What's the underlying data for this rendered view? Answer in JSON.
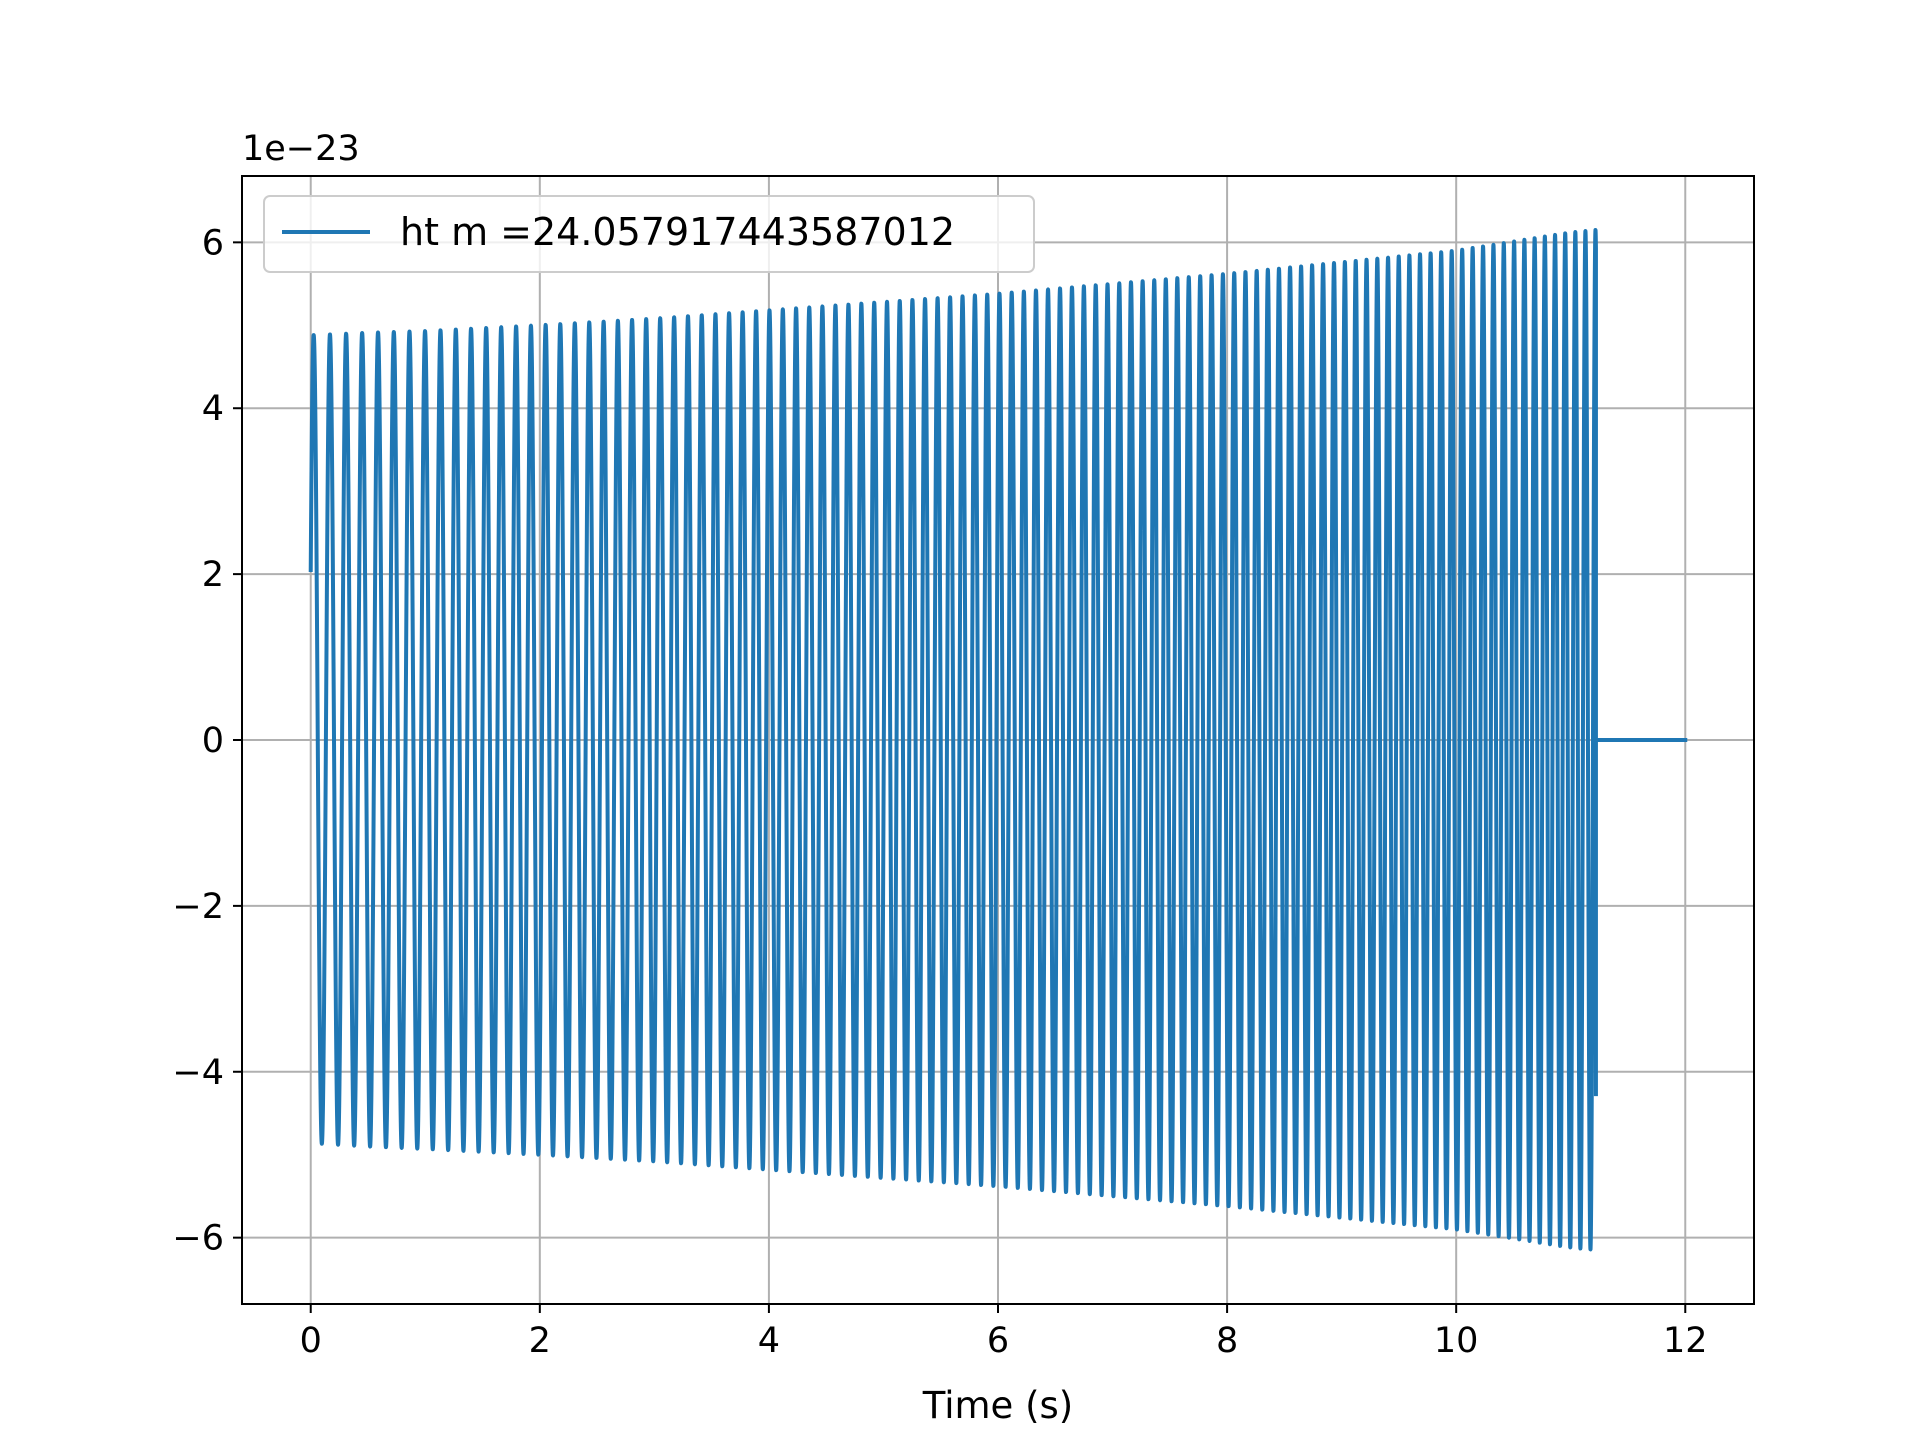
{
  "chart_data": {
    "type": "line",
    "title": "",
    "xlabel": "Time (s)",
    "ylabel": "",
    "offset_text": "1e−23",
    "xlim": [
      -0.6,
      12.6
    ],
    "ylim": [
      -6.8,
      6.8
    ],
    "xticks": [
      0,
      2,
      4,
      6,
      8,
      10,
      12
    ],
    "xtick_labels": [
      "0",
      "2",
      "4",
      "6",
      "8",
      "10",
      "12"
    ],
    "yticks": [
      -6,
      -4,
      -2,
      0,
      2,
      4,
      6
    ],
    "ytick_labels": [
      "−6",
      "−4",
      "−2",
      "0",
      "2",
      "4",
      "6"
    ],
    "y_scale_factor": 1e-23,
    "grid": true,
    "legend_position": "upper left",
    "series": [
      {
        "name": "ht m =24.057917443587012",
        "color": "#1f77b4",
        "description": "chirp waveform; amplitude grows ~4.9 to ~6.2 (x1e-23), frequency increases, signal ends near t=11.25 s then stays at 0 until t=12",
        "envelope_x": [
          0.0,
          0.5,
          1.0,
          2.0,
          3.0,
          4.0,
          5.0,
          6.0,
          7.0,
          8.0,
          9.0,
          10.0,
          11.0,
          11.22
        ],
        "envelope_upper": [
          4.88,
          4.91,
          4.93,
          5.0,
          5.08,
          5.18,
          5.28,
          5.38,
          5.5,
          5.62,
          5.76,
          5.9,
          6.12,
          6.15
        ],
        "envelope_lower": [
          -4.86,
          -4.9,
          -4.93,
          -5.0,
          -5.08,
          -5.18,
          -5.28,
          -5.38,
          -5.5,
          -5.62,
          -5.76,
          -5.9,
          -6.12,
          -6.15
        ],
        "start_value": 2.05,
        "end_time": 11.22,
        "end_value": -4.27,
        "flat_zero_x": [
          11.22,
          12.0
        ],
        "flat_zero_y": [
          0,
          0
        ]
      }
    ]
  }
}
